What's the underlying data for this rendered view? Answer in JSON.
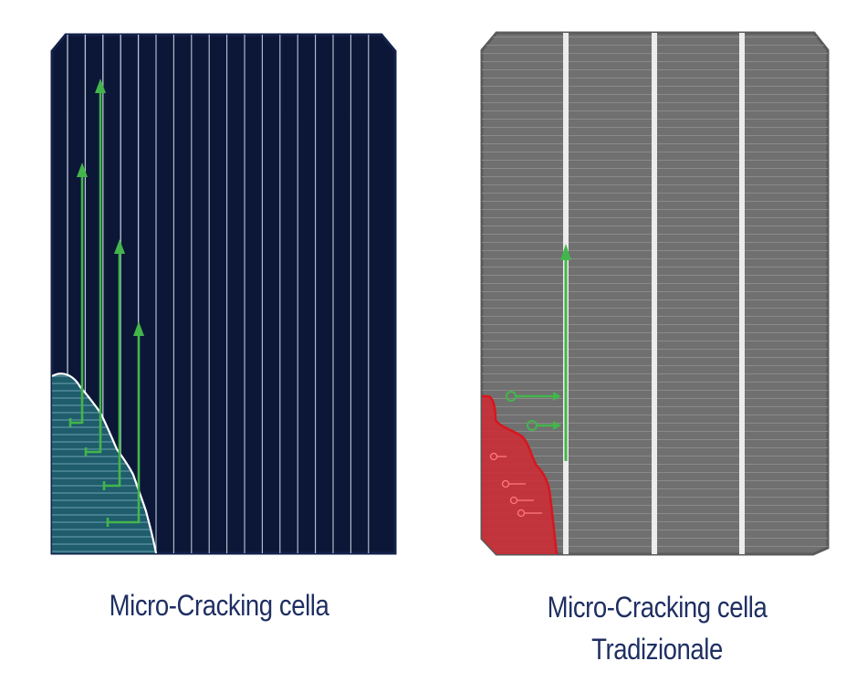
{
  "colors": {
    "cell_dark": "#0c1738",
    "cell_border": "#13204a",
    "finger_light": "#d9e6f2",
    "cracked_region": "#1f5c6c",
    "current_arrow": "#43b54b",
    "cell_grey": "#707070",
    "cell_grey_border": "#5a5a5a",
    "busbar": "#ececec",
    "dead_region": "#cc2b33",
    "caption_text": "#1f2f63"
  },
  "left_panel": {
    "name": "multi-busbar-cell",
    "fingers": 18,
    "cracked_corner": true,
    "current_paths": 4
  },
  "right_panel": {
    "name": "traditional-cell",
    "busbars": 3,
    "dead_corner": true,
    "current_paths": 2
  },
  "captions": {
    "left": "Micro-Cracking cella",
    "right_line1": "Micro-Cracking cella",
    "right_line2": "Tradizionale"
  }
}
